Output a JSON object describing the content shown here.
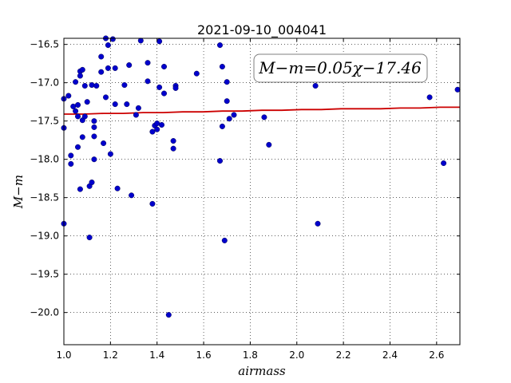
{
  "chart_data": {
    "type": "scatter",
    "title": "2021-09-10_004041",
    "xlabel": "airmass",
    "ylabel": "M−m",
    "xlim": [
      1.0,
      2.7
    ],
    "ylim": [
      -20.42,
      -16.42
    ],
    "y_inverted": true,
    "grid": true,
    "xticks": [
      "1.0",
      "1.2",
      "1.4",
      "1.6",
      "1.8",
      "2.0",
      "2.2",
      "2.4",
      "2.6"
    ],
    "yticks": [
      "−16.5",
      "−17.0",
      "−17.5",
      "−18.0",
      "−18.5",
      "−19.0",
      "−19.5",
      "−20.0"
    ],
    "annotation": "M−m=0.05χ−17.46",
    "fit": {
      "slope": 0.05,
      "intercept": -17.46,
      "color": "#cc0000"
    },
    "point_color": "#0000cc",
    "points": [
      {
        "x": 1.0,
        "y": -17.21
      },
      {
        "x": 1.0,
        "y": -17.59
      },
      {
        "x": 1.0,
        "y": -18.84
      },
      {
        "x": 1.02,
        "y": -17.17
      },
      {
        "x": 1.03,
        "y": -17.95
      },
      {
        "x": 1.03,
        "y": -18.06
      },
      {
        "x": 1.04,
        "y": -17.31
      },
      {
        "x": 1.05,
        "y": -17.37
      },
      {
        "x": 1.05,
        "y": -16.99
      },
      {
        "x": 1.06,
        "y": -17.44
      },
      {
        "x": 1.06,
        "y": -17.29
      },
      {
        "x": 1.06,
        "y": -17.84
      },
      {
        "x": 1.07,
        "y": -16.85
      },
      {
        "x": 1.07,
        "y": -16.91
      },
      {
        "x": 1.07,
        "y": -18.39
      },
      {
        "x": 1.08,
        "y": -17.71
      },
      {
        "x": 1.08,
        "y": -17.49
      },
      {
        "x": 1.08,
        "y": -16.83
      },
      {
        "x": 1.09,
        "y": -17.04
      },
      {
        "x": 1.09,
        "y": -17.44
      },
      {
        "x": 1.1,
        "y": -17.25
      },
      {
        "x": 1.11,
        "y": -18.35
      },
      {
        "x": 1.11,
        "y": -19.02
      },
      {
        "x": 1.12,
        "y": -18.3
      },
      {
        "x": 1.12,
        "y": -17.03
      },
      {
        "x": 1.13,
        "y": -17.5
      },
      {
        "x": 1.13,
        "y": -17.58
      },
      {
        "x": 1.13,
        "y": -17.7
      },
      {
        "x": 1.13,
        "y": -18.0
      },
      {
        "x": 1.14,
        "y": -17.04
      },
      {
        "x": 1.16,
        "y": -16.66
      },
      {
        "x": 1.16,
        "y": -16.86
      },
      {
        "x": 1.17,
        "y": -17.79
      },
      {
        "x": 1.18,
        "y": -17.19
      },
      {
        "x": 1.18,
        "y": -16.42
      },
      {
        "x": 1.19,
        "y": -16.51
      },
      {
        "x": 1.19,
        "y": -16.81
      },
      {
        "x": 1.2,
        "y": -17.93
      },
      {
        "x": 1.21,
        "y": -16.43
      },
      {
        "x": 1.22,
        "y": -17.28
      },
      {
        "x": 1.22,
        "y": -16.81
      },
      {
        "x": 1.23,
        "y": -18.38
      },
      {
        "x": 1.26,
        "y": -17.03
      },
      {
        "x": 1.27,
        "y": -17.28
      },
      {
        "x": 1.28,
        "y": -16.77
      },
      {
        "x": 1.29,
        "y": -18.47
      },
      {
        "x": 1.31,
        "y": -17.42
      },
      {
        "x": 1.32,
        "y": -17.33
      },
      {
        "x": 1.33,
        "y": -16.45
      },
      {
        "x": 1.36,
        "y": -16.74
      },
      {
        "x": 1.36,
        "y": -16.98
      },
      {
        "x": 1.38,
        "y": -18.58
      },
      {
        "x": 1.38,
        "y": -17.64
      },
      {
        "x": 1.39,
        "y": -17.56
      },
      {
        "x": 1.4,
        "y": -17.61
      },
      {
        "x": 1.4,
        "y": -17.53
      },
      {
        "x": 1.41,
        "y": -17.06
      },
      {
        "x": 1.41,
        "y": -16.46
      },
      {
        "x": 1.42,
        "y": -17.55
      },
      {
        "x": 1.43,
        "y": -17.14
      },
      {
        "x": 1.43,
        "y": -16.79
      },
      {
        "x": 1.45,
        "y": -20.03
      },
      {
        "x": 1.47,
        "y": -17.76
      },
      {
        "x": 1.47,
        "y": -17.86
      },
      {
        "x": 1.48,
        "y": -17.04
      },
      {
        "x": 1.48,
        "y": -17.07
      },
      {
        "x": 1.57,
        "y": -16.88
      },
      {
        "x": 1.67,
        "y": -16.51
      },
      {
        "x": 1.67,
        "y": -18.02
      },
      {
        "x": 1.68,
        "y": -16.79
      },
      {
        "x": 1.68,
        "y": -17.57
      },
      {
        "x": 1.69,
        "y": -19.06
      },
      {
        "x": 1.7,
        "y": -17.24
      },
      {
        "x": 1.7,
        "y": -16.99
      },
      {
        "x": 1.71,
        "y": -17.47
      },
      {
        "x": 1.73,
        "y": -17.42
      },
      {
        "x": 1.86,
        "y": -17.45
      },
      {
        "x": 1.88,
        "y": -17.81
      },
      {
        "x": 2.08,
        "y": -17.04
      },
      {
        "x": 2.09,
        "y": -18.84
      },
      {
        "x": 2.57,
        "y": -17.19
      },
      {
        "x": 2.63,
        "y": -18.05
      },
      {
        "x": 2.69,
        "y": -17.09
      }
    ]
  }
}
